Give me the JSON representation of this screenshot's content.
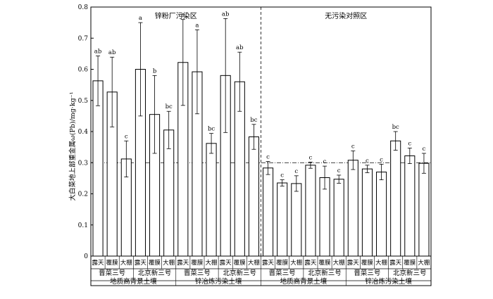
{
  "chart_data": {
    "type": "bar",
    "ylabel": "大白菜地上部重金属ω(Pb)/mg·kg⁻¹",
    "ylim": [
      0,
      0.8
    ],
    "yticks": [
      "0",
      "0.1",
      "0.2",
      "0.3",
      "0.4",
      "0.5",
      "0.6",
      "0.7",
      "0.8"
    ],
    "reference_line": 0.3,
    "regions": [
      "锌粉厂污染区",
      "无污染对照区"
    ],
    "soil_groups": [
      "地质高背景土壤",
      "锌冶炼污染土壤",
      "地质高背景土壤",
      "锌冶炼污染土壤"
    ],
    "varieties": [
      "晋菜三号",
      "北京新三号",
      "晋菜三号",
      "北京新三号",
      "晋菜三号",
      "北京新三号",
      "晋菜三号",
      "北京新三号"
    ],
    "categories": [
      "露天",
      "覆膜",
      "大棚",
      "露天",
      "覆膜",
      "大棚",
      "露天",
      "覆膜",
      "大棚",
      "露天",
      "覆膜",
      "大棚",
      "露天",
      "覆膜",
      "大棚",
      "露天",
      "覆膜",
      "大棚",
      "露天",
      "覆膜",
      "大棚",
      "露天",
      "覆膜",
      "大棚"
    ],
    "values": [
      0.563,
      0.527,
      0.312,
      0.6,
      0.455,
      0.405,
      0.622,
      0.592,
      0.362,
      0.58,
      0.56,
      0.383,
      0.283,
      0.235,
      0.233,
      0.292,
      0.252,
      0.247,
      0.308,
      0.28,
      0.27,
      0.37,
      0.322,
      0.298
    ],
    "errors": [
      0.08,
      0.112,
      0.058,
      0.15,
      0.125,
      0.06,
      0.138,
      0.135,
      0.032,
      0.183,
      0.095,
      0.04,
      0.021,
      0.01,
      0.025,
      0.01,
      0.037,
      0.013,
      0.03,
      0.012,
      0.025,
      0.03,
      0.025,
      0.032
    ],
    "significance": [
      "ab",
      "ab",
      "c",
      "a",
      "b",
      "bc",
      "a",
      "a",
      "bc",
      "ab",
      "ab",
      "bc",
      "c",
      "c",
      "c",
      "c",
      "c",
      "c",
      "c",
      "c",
      "c",
      "bc",
      "c",
      "c"
    ]
  }
}
